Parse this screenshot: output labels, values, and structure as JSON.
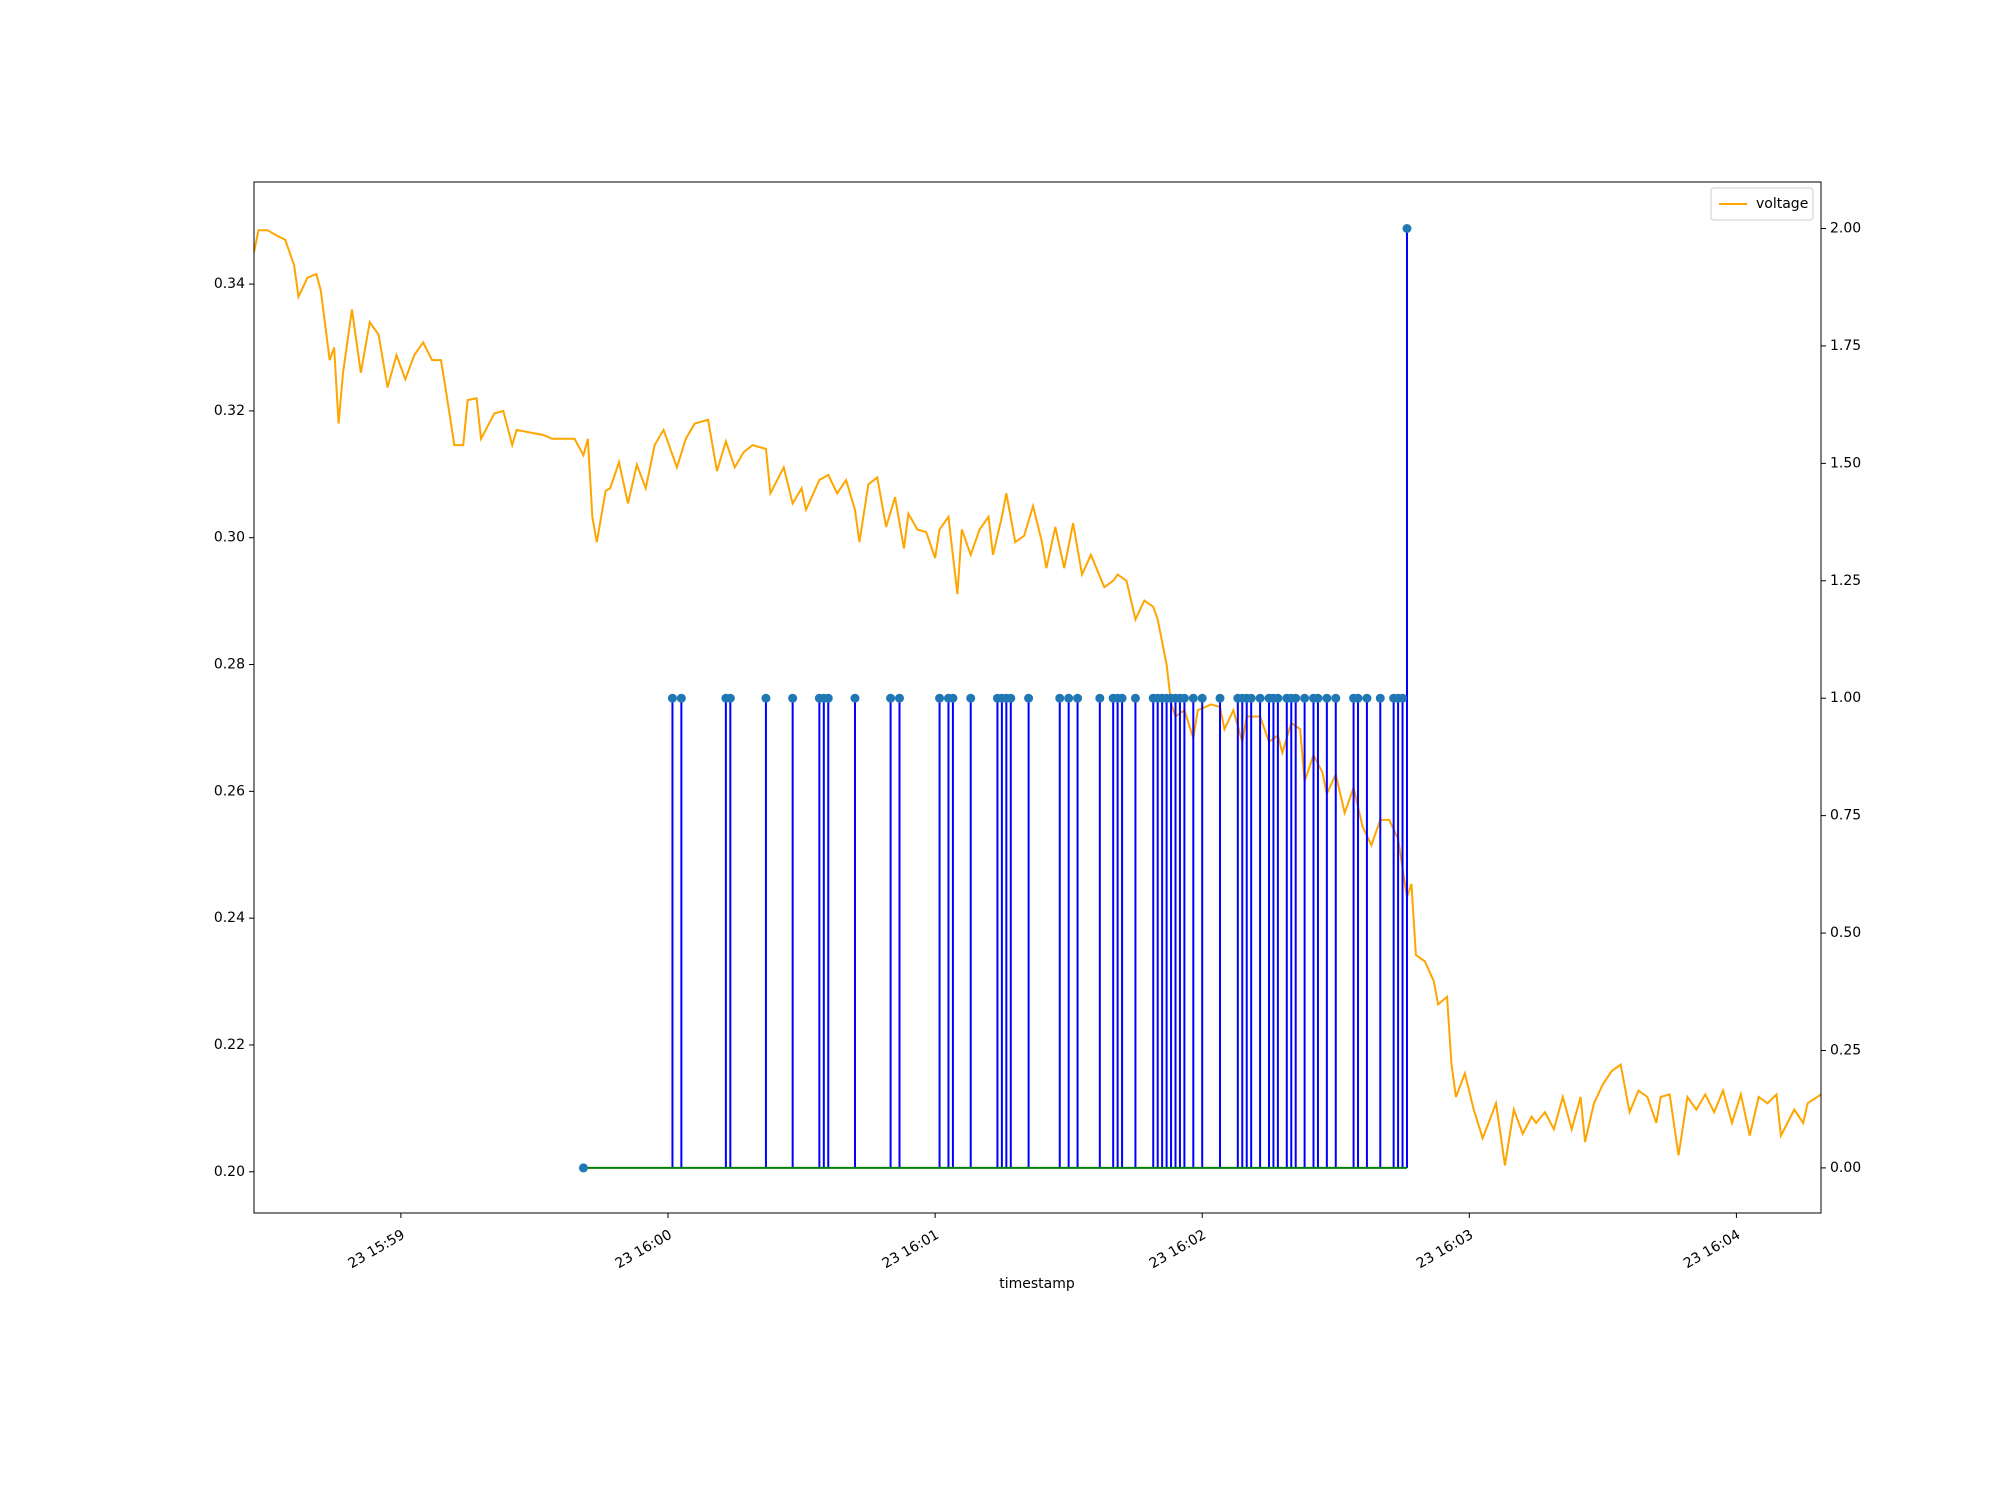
{
  "chart_data": {
    "type": "line",
    "x_label": "timestamp",
    "legend": "upper right",
    "grid": false,
    "xlim": [
      "23 15:58:27",
      "23 16:04:19"
    ],
    "xticks": [
      "23 15:59",
      "23 16:00",
      "23 16:01",
      "23 16:02",
      "23 16:03",
      "23 16:04"
    ],
    "ylim": [
      0.1935,
      0.3561
    ],
    "yticks": [
      {
        "value": 0.2,
        "label": "0.20"
      },
      0.22,
      0.24,
      0.26,
      0.28,
      {
        "value": 0.3,
        "label": "0.30"
      },
      0.32,
      0.34
    ],
    "y2lim": [
      -0.096,
      2.099
    ],
    "y2ticks": [
      {
        "value": 0,
        "label": "0.00"
      },
      0.25,
      {
        "value": 0.5,
        "label": "0.50"
      },
      0.75,
      {
        "value": 1,
        "label": "1.00"
      },
      1.25,
      {
        "value": 1.5,
        "label": "1.50"
      },
      1.75,
      {
        "value": 2,
        "label": "2.00"
      }
    ],
    "series": [
      {
        "name": "voltage",
        "type": "line",
        "color": "orange",
        "axis": "y",
        "x": [
          "23 15:58:27",
          "23 15:58:28",
          "23 15:58:30",
          "23 15:58:32",
          "23 15:58:34",
          "23 15:58:36",
          "23 15:58:37",
          "23 15:58:39",
          "23 15:58:41",
          "23 15:58:42",
          "23 15:58:44",
          "23 15:58:45",
          "23 15:58:46",
          "23 15:58:47",
          "23 15:58:49",
          "23 15:58:51",
          "23 15:58:53",
          "23 15:58:55",
          "23 15:58:57",
          "23 15:58:59",
          "23 15:59:01",
          "23 15:59:03",
          "23 15:59:05",
          "23 15:59:07",
          "23 15:59:09",
          "23 15:59:10",
          "23 15:59:12",
          "23 15:59:14",
          "23 15:59:15",
          "23 15:59:17",
          "23 15:59:18",
          "23 15:59:21",
          "23 15:59:23",
          "23 15:59:25",
          "23 15:59:26",
          "23 15:59:29",
          "23 15:59:32",
          "23 15:59:34",
          "23 15:59:36",
          "23 15:59:39",
          "23 15:59:41",
          "23 15:59:42",
          "23 15:59:43",
          "23 15:59:44",
          "23 15:59:46",
          "23 15:59:47",
          "23 15:59:49",
          "23 15:59:51",
          "23 15:59:53",
          "23 15:59:55",
          "23 15:59:57",
          "23 15:59:59",
          "23 16:00:02",
          "23 16:00:04",
          "23 16:00:06",
          "23 16:00:09",
          "23 16:00:11",
          "23 16:00:13",
          "23 16:00:15",
          "23 16:00:17",
          "23 16:00:19",
          "23 16:00:22",
          "23 16:00:23",
          "23 16:00:26",
          "23 16:00:28",
          "23 16:00:30",
          "23 16:00:31",
          "23 16:00:34",
          "23 16:00:36",
          "23 16:00:38",
          "23 16:00:40",
          "23 16:00:42",
          "23 16:00:43",
          "23 16:00:45",
          "23 16:00:47",
          "23 16:00:49",
          "23 16:00:51",
          "23 16:00:53",
          "23 16:00:54",
          "23 16:00:56",
          "23 16:00:58",
          "23 16:01:00",
          "23 16:01:01",
          "23 16:01:03",
          "23 16:01:05",
          "23 16:01:06",
          "23 16:01:08",
          "23 16:01:10",
          "23 16:01:12",
          "23 16:01:13",
          "23 16:01:15",
          "23 16:01:16",
          "23 16:01:18",
          "23 16:01:20",
          "23 16:01:22",
          "23 16:01:24",
          "23 16:01:25",
          "23 16:01:27",
          "23 16:01:29",
          "23 16:01:31",
          "23 16:01:33",
          "23 16:01:35",
          "23 16:01:36",
          "23 16:01:38",
          "23 16:01:40",
          "23 16:01:41",
          "23 16:01:43",
          "23 16:01:45",
          "23 16:01:47",
          "23 16:01:49",
          "23 16:01:50",
          "23 16:01:52",
          "23 16:01:53",
          "23 16:01:54",
          "23 16:01:56",
          "23 16:01:58",
          "23 16:01:59",
          "23 16:02:02",
          "23 16:02:04",
          "23 16:02:05",
          "23 16:02:07",
          "23 16:02:09",
          "23 16:02:10",
          "23 16:02:13",
          "23 16:02:15",
          "23 16:02:17",
          "23 16:02:18",
          "23 16:02:20",
          "23 16:02:22",
          "23 16:02:23",
          "23 16:02:25",
          "23 16:02:27",
          "23 16:02:28",
          "23 16:02:30",
          "23 16:02:32",
          "23 16:02:34",
          "23 16:02:36",
          "23 16:02:38",
          "23 16:02:40",
          "23 16:02:42",
          "23 16:02:44",
          "23 16:02:46",
          "23 16:02:47",
          "23 16:02:48",
          "23 16:02:50",
          "23 16:02:52",
          "23 16:02:53",
          "23 16:02:55",
          "23 16:02:56",
          "23 16:02:57",
          "23 16:02:59",
          "23 16:03:01",
          "23 16:03:03",
          "23 16:03:06",
          "23 16:03:07",
          "23 16:03:08",
          "23 16:03:10",
          "23 16:03:12",
          "23 16:03:14",
          "23 16:03:15",
          "23 16:03:17",
          "23 16:03:19",
          "23 16:03:21",
          "23 16:03:23",
          "23 16:03:25",
          "23 16:03:26",
          "23 16:03:28",
          "23 16:03:30",
          "23 16:03:32",
          "23 16:03:34",
          "23 16:03:36",
          "23 16:03:38",
          "23 16:03:40",
          "23 16:03:42",
          "23 16:03:43",
          "23 16:03:45",
          "23 16:03:47",
          "23 16:03:49",
          "23 16:03:51",
          "23 16:03:53",
          "23 16:03:55",
          "23 16:03:57",
          "23 16:03:59",
          "23 16:04:01",
          "23 16:04:03",
          "23 16:04:05",
          "23 16:04:07",
          "23 16:04:09",
          "23 16:04:10",
          "23 16:04:13",
          "23 16:04:15",
          "23 16:04:16",
          "23 16:04:19"
        ],
        "values": [
          0.345,
          0.3485,
          0.3485,
          0.3477,
          0.347,
          0.343,
          0.338,
          0.341,
          0.3416,
          0.339,
          0.328,
          0.33,
          0.318,
          0.326,
          0.336,
          0.326,
          0.334,
          0.332,
          0.3237,
          0.3288,
          0.325,
          0.3288,
          0.3308,
          0.328,
          0.328,
          0.3237,
          0.3146,
          0.3146,
          0.3217,
          0.322,
          0.3156,
          0.3196,
          0.32,
          0.3146,
          0.317,
          0.3166,
          0.3162,
          0.3156,
          0.3156,
          0.3156,
          0.313,
          0.3156,
          0.3033,
          0.2993,
          0.3074,
          0.3078,
          0.3119,
          0.3054,
          0.3115,
          0.3078,
          0.3146,
          0.317,
          0.3111,
          0.3156,
          0.318,
          0.3186,
          0.3105,
          0.3152,
          0.3111,
          0.3135,
          0.3146,
          0.314,
          0.307,
          0.3111,
          0.3054,
          0.3078,
          0.3044,
          0.3091,
          0.3099,
          0.307,
          0.3091,
          0.3044,
          0.2993,
          0.3084,
          0.3095,
          0.3017,
          0.3064,
          0.2983,
          0.3038,
          0.3013,
          0.3009,
          0.2968,
          0.3013,
          0.3033,
          0.2911,
          0.3013,
          0.2973,
          0.3013,
          0.3033,
          0.2973,
          0.3033,
          0.307,
          0.2993,
          0.3003,
          0.305,
          0.2993,
          0.2952,
          0.3017,
          0.2952,
          0.3023,
          0.2942,
          0.2973,
          0.2956,
          0.2922,
          0.2932,
          0.2942,
          0.2932,
          0.2871,
          0.2901,
          0.2891,
          0.2871,
          0.28,
          0.2739,
          0.2718,
          0.2728,
          0.2684,
          0.2728,
          0.2737,
          0.2733,
          0.2698,
          0.2728,
          0.2678,
          0.2718,
          0.2718,
          0.2678,
          0.2688,
          0.2661,
          0.2708,
          0.2698,
          0.2616,
          0.2657,
          0.263,
          0.2596,
          0.2627,
          0.2566,
          0.2606,
          0.2545,
          0.2515,
          0.2555,
          0.2555,
          0.2525,
          0.2433,
          0.2454,
          0.2342,
          0.2332,
          0.2301,
          0.2264,
          0.2276,
          0.2169,
          0.2118,
          0.2155,
          0.2098,
          0.2053,
          0.2108,
          0.206,
          0.201,
          0.2098,
          0.206,
          0.2087,
          0.2077,
          0.2094,
          0.2067,
          0.2118,
          0.2067,
          0.2118,
          0.2047,
          0.2108,
          0.2138,
          0.2159,
          0.2169,
          0.2094,
          0.2128,
          0.2118,
          0.2077,
          0.2118,
          0.2122,
          0.2026,
          0.2118,
          0.2098,
          0.2122,
          0.2094,
          0.2128,
          0.2077,
          0.2122,
          0.2057,
          0.2118,
          0.2108,
          0.2122,
          0.2057,
          0.2098,
          0.2077,
          0.2108,
          0.2122
        ]
      },
      {
        "type": "stem",
        "color": "blue",
        "marker_color": "#1f77b4",
        "baseline_color": "green",
        "axis": "y2",
        "x": [
          "23 15:59:41",
          "23 16:00:01",
          "23 16:00:03",
          "23 16:00:13",
          "23 16:00:14",
          "23 16:00:22",
          "23 16:00:28",
          "23 16:00:34",
          "23 16:00:35",
          "23 16:00:36",
          "23 16:00:42",
          "23 16:00:50",
          "23 16:00:52",
          "23 16:01:01",
          "23 16:01:03",
          "23 16:01:04",
          "23 16:01:08",
          "23 16:01:14",
          "23 16:01:15",
          "23 16:01:16",
          "23 16:01:17",
          "23 16:01:21",
          "23 16:01:28",
          "23 16:01:30",
          "23 16:01:32",
          "23 16:01:37",
          "23 16:01:40",
          "23 16:01:41",
          "23 16:01:42",
          "23 16:01:45",
          "23 16:01:49",
          "23 16:01:50",
          "23 16:01:51",
          "23 16:01:52",
          "23 16:01:53",
          "23 16:01:54",
          "23 16:01:55",
          "23 16:01:56",
          "23 16:01:58",
          "23 16:02:00",
          "23 16:02:04",
          "23 16:02:08",
          "23 16:02:09",
          "23 16:02:10",
          "23 16:02:11",
          "23 16:02:13",
          "23 16:02:15",
          "23 16:02:16",
          "23 16:02:17",
          "23 16:02:19",
          "23 16:02:20",
          "23 16:02:21",
          "23 16:02:23",
          "23 16:02:25",
          "23 16:02:26",
          "23 16:02:28",
          "23 16:02:30",
          "23 16:02:34",
          "23 16:02:35",
          "23 16:02:37",
          "23 16:02:40",
          "23 16:02:43",
          "23 16:02:44",
          "23 16:02:45",
          "23 16:02:46"
        ],
        "values": [
          0,
          1,
          1,
          1,
          1,
          1,
          1,
          1,
          1,
          1,
          1,
          1,
          1,
          1,
          1,
          1,
          1,
          1,
          1,
          1,
          1,
          1,
          1,
          1,
          1,
          1,
          1,
          1,
          1,
          1,
          1,
          1,
          1,
          1,
          1,
          1,
          1,
          1,
          1,
          1,
          1,
          1,
          1,
          1,
          1,
          1,
          1,
          1,
          1,
          1,
          1,
          1,
          1,
          1,
          1,
          1,
          1,
          1,
          1,
          1,
          1,
          1,
          1,
          1,
          2
        ]
      }
    ]
  }
}
